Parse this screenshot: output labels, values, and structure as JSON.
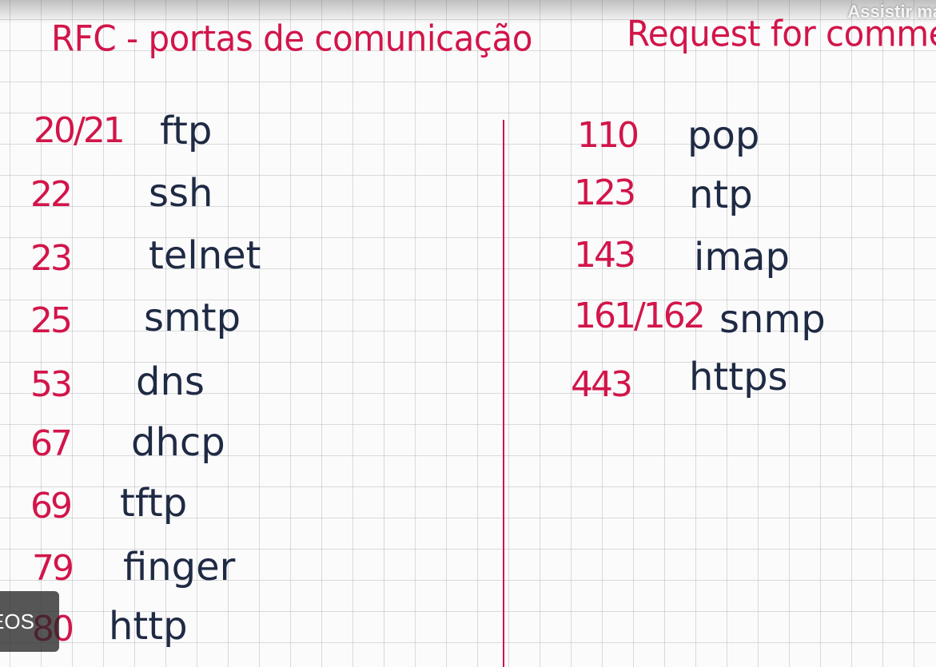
{
  "overlay": {
    "watch_more": "Assistir ma",
    "videos_badge": "EOS"
  },
  "notebook": {
    "left_title": "RFC - portas de comunicação",
    "right_title": "Request for comments",
    "left_ports": [
      {
        "port": "20/21",
        "protocol": "ftp"
      },
      {
        "port": "22",
        "protocol": "ssh"
      },
      {
        "port": "23",
        "protocol": "telnet"
      },
      {
        "port": "25",
        "protocol": "smtp"
      },
      {
        "port": "53",
        "protocol": "dns"
      },
      {
        "port": "67",
        "protocol": "dhcp"
      },
      {
        "port": "69",
        "protocol": "tftp"
      },
      {
        "port": "79",
        "protocol": "finger"
      },
      {
        "port": "80",
        "protocol": "http"
      }
    ],
    "right_ports": [
      {
        "port": "110",
        "protocol": "pop"
      },
      {
        "port": "123",
        "protocol": "ntp"
      },
      {
        "port": "143",
        "protocol": "imap"
      },
      {
        "port": "161/162",
        "protocol": "snmp"
      },
      {
        "port": "443",
        "protocol": "https"
      }
    ]
  },
  "colors": {
    "port_ink": "#d2154a",
    "protocol_ink": "#1f2a44",
    "divider": "#c9184a",
    "grid": "#bebec3"
  }
}
